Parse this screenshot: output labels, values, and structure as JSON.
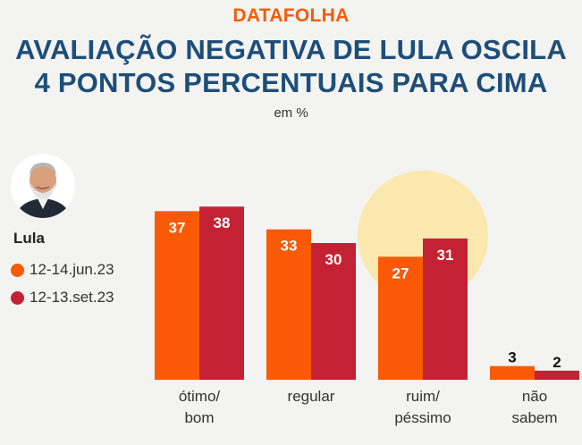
{
  "header": {
    "brand": "DATAFOLHA",
    "title": "AVALIAÇÃO NEGATIVA DE LULA OSCILA\n4 PONTOS PERCENTUAIS PARA CIMA",
    "subtitle": "em %"
  },
  "person": {
    "name": "Lula"
  },
  "colors": {
    "orange": "#fa5a06",
    "red": "#c42234",
    "highlight": "#fbe8ae",
    "title": "#1d4e79"
  },
  "chart_data": {
    "type": "bar",
    "categories": [
      "ótimo/\nbom",
      "regular",
      "ruim/\npéssimo",
      "não\nsabem"
    ],
    "series": [
      {
        "name": "12-14.jun.23",
        "color": "#fa5a06",
        "values": [
          37,
          33,
          27,
          3
        ]
      },
      {
        "name": "12-13.set.23",
        "color": "#c42234",
        "values": [
          38,
          30,
          31,
          2
        ]
      }
    ],
    "ylim": [
      0,
      38
    ],
    "highlighted_category": "ruim/\npéssimo",
    "legend_position": "left"
  }
}
